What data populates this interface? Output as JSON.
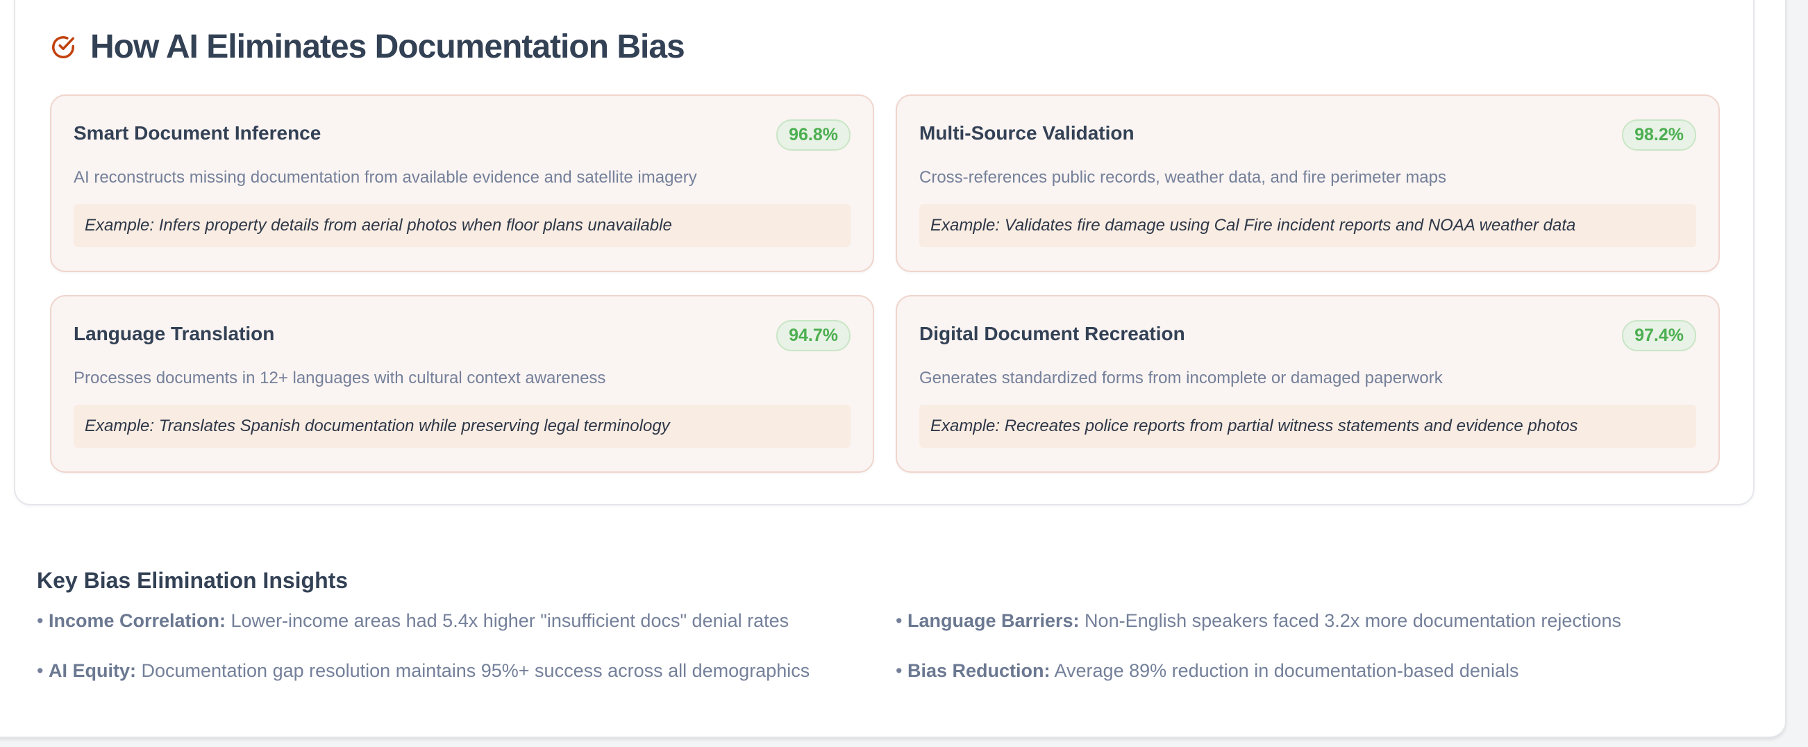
{
  "section": {
    "title": "How AI Eliminates Documentation Bias",
    "icon": "check-circle-icon",
    "accent": "#c2410c"
  },
  "cards": [
    {
      "title": "Smart Document Inference",
      "rate": "96.8%",
      "description": "AI reconstructs missing documentation from available evidence and satellite imagery",
      "example": "Example: Infers property details from aerial photos when floor plans unavailable"
    },
    {
      "title": "Multi-Source Validation",
      "rate": "98.2%",
      "description": "Cross-references public records, weather data, and fire perimeter maps",
      "example": "Example: Validates fire damage using Cal Fire incident reports and NOAA weather data"
    },
    {
      "title": "Language Translation",
      "rate": "94.7%",
      "description": "Processes documents in 12+ languages with cultural context awareness",
      "example": "Example: Translates Spanish documentation while preserving legal terminology"
    },
    {
      "title": "Digital Document Recreation",
      "rate": "97.4%",
      "description": "Generates standardized forms from incomplete or damaged paperwork",
      "example": "Example: Recreates police reports from partial witness statements and evidence photos"
    }
  ],
  "insights": {
    "title": "Key Bias Elimination Insights",
    "items": [
      {
        "label": "Income Correlation:",
        "text": " Lower-income areas had 5.4x higher \"insufficient docs\" denial rates"
      },
      {
        "label": "Language Barriers:",
        "text": " Non-English speakers faced 3.2x more documentation rejections"
      },
      {
        "label": "AI Equity:",
        "text": " Documentation gap resolution maintains 95%+ success across all demographics"
      },
      {
        "label": "Bias Reduction:",
        "text": " Average 89% reduction in documentation-based denials"
      }
    ]
  }
}
